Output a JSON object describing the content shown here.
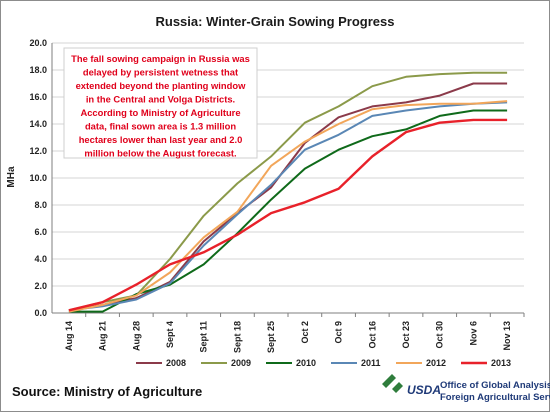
{
  "chart_data": {
    "type": "line",
    "title": "Russia:  Winter-Grain Sowing Progress",
    "ylabel": "MHa",
    "xlabel": "",
    "ylim": [
      0,
      20
    ],
    "yticks": [
      "0.0",
      "2.0",
      "4.0",
      "6.0",
      "8.0",
      "10.0",
      "12.0",
      "14.0",
      "16.0",
      "18.0",
      "20.0"
    ],
    "categories": [
      "Aug 14",
      "Aug 21",
      "Aug 28",
      "Sept 4",
      "Sept 11",
      "Sept 18",
      "Sept 25",
      "Oct 2",
      "Oct 9",
      "Oct 16",
      "Oct 23",
      "Oct 30",
      "Nov 6",
      "Nov 13"
    ],
    "series": [
      {
        "name": "2008",
        "color": "#8b3a4a",
        "values": [
          0.2,
          0.6,
          1.1,
          2.3,
          5.3,
          7.4,
          9.3,
          12.6,
          14.5,
          15.3,
          15.6,
          16.1,
          17.0,
          17.0
        ]
      },
      {
        "name": "2009",
        "color": "#8b9a4a",
        "values": [
          0.2,
          0.8,
          1.3,
          4.0,
          7.2,
          9.6,
          11.6,
          14.1,
          15.3,
          16.8,
          17.5,
          17.7,
          17.8,
          17.8
        ]
      },
      {
        "name": "2010",
        "color": "#0f6a1a",
        "values": [
          0.1,
          0.1,
          1.4,
          2.1,
          3.6,
          5.9,
          8.4,
          10.7,
          12.1,
          13.1,
          13.6,
          14.6,
          15.0,
          15.0
        ]
      },
      {
        "name": "2011",
        "color": "#5a87b5",
        "values": [
          0.2,
          0.5,
          1.0,
          2.2,
          5.0,
          7.3,
          9.5,
          12.1,
          13.2,
          14.6,
          15.0,
          15.3,
          15.5,
          15.6
        ]
      },
      {
        "name": "2012",
        "color": "#f2a65a",
        "values": [
          0.1,
          0.6,
          1.3,
          3.0,
          5.6,
          7.5,
          10.9,
          12.7,
          14.0,
          15.1,
          15.4,
          15.5,
          15.5,
          15.7
        ]
      },
      {
        "name": "2013",
        "color": "#e8212a",
        "values": [
          0.2,
          0.8,
          2.1,
          3.6,
          4.5,
          5.8,
          7.4,
          8.2,
          9.2,
          11.6,
          13.4,
          14.1,
          14.3,
          14.3
        ]
      }
    ],
    "grid": true,
    "legend_position": "bottom"
  },
  "annotation": {
    "lines": [
      "The fall sowing campaign in Russia was",
      "delayed by persistent wetness that",
      "extended beyond the planting window",
      "in the Central and Volga Districts.",
      "According to Ministry of Agriculture",
      "data, final sown area is 1.3 million",
      "hectares lower than last year and 2.0",
      "million below the August forecast."
    ],
    "color": "#e0001b"
  },
  "footer": {
    "source": "Source:  Ministry of Agriculture",
    "logo_text": "USDA",
    "office_line1": "Office of Global Analysis",
    "office_line2": "Foreign Agricultural Service"
  }
}
